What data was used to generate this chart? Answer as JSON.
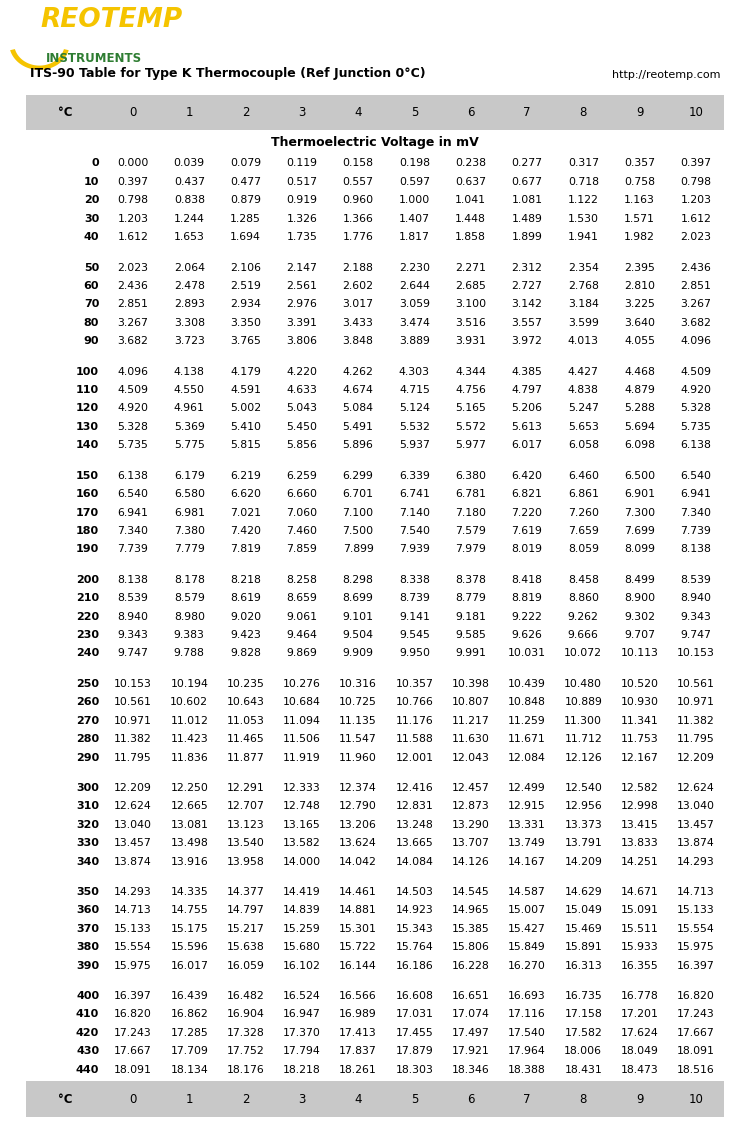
{
  "title_left": "ITS-90 Table for Type K Thermocouple (Ref Junction 0°C)",
  "title_right": "http://reotemp.com",
  "subtitle": "Thermoelectric Voltage in mV",
  "col_headers": [
    "°C",
    "0",
    "1",
    "2",
    "3",
    "4",
    "5",
    "6",
    "7",
    "8",
    "9",
    "10"
  ],
  "left_sidebar_color": "#3a7d44",
  "right_sidebar_color": "#f5c400",
  "header_bg": "#c8c8c8",
  "bg_color": "#ffffff",
  "text_color": "#000000",
  "header_text_color": "#000000",
  "bold_temp_color": "#000000",
  "logo_yellow": "#f5c400",
  "logo_green": "#2e7d32",
  "data": [
    [
      0,
      0.0,
      0.039,
      0.079,
      0.119,
      0.158,
      0.198,
      0.238,
      0.277,
      0.317,
      0.357,
      0.397
    ],
    [
      10,
      0.397,
      0.437,
      0.477,
      0.517,
      0.557,
      0.597,
      0.637,
      0.677,
      0.718,
      0.758,
      0.798
    ],
    [
      20,
      0.798,
      0.838,
      0.879,
      0.919,
      0.96,
      1.0,
      1.041,
      1.081,
      1.122,
      1.163,
      1.203
    ],
    [
      30,
      1.203,
      1.244,
      1.285,
      1.326,
      1.366,
      1.407,
      1.448,
      1.489,
      1.53,
      1.571,
      1.612
    ],
    [
      40,
      1.612,
      1.653,
      1.694,
      1.735,
      1.776,
      1.817,
      1.858,
      1.899,
      1.941,
      1.982,
      2.023
    ],
    [
      50,
      2.023,
      2.064,
      2.106,
      2.147,
      2.188,
      2.23,
      2.271,
      2.312,
      2.354,
      2.395,
      2.436
    ],
    [
      60,
      2.436,
      2.478,
      2.519,
      2.561,
      2.602,
      2.644,
      2.685,
      2.727,
      2.768,
      2.81,
      2.851
    ],
    [
      70,
      2.851,
      2.893,
      2.934,
      2.976,
      3.017,
      3.059,
      3.1,
      3.142,
      3.184,
      3.225,
      3.267
    ],
    [
      80,
      3.267,
      3.308,
      3.35,
      3.391,
      3.433,
      3.474,
      3.516,
      3.557,
      3.599,
      3.64,
      3.682
    ],
    [
      90,
      3.682,
      3.723,
      3.765,
      3.806,
      3.848,
      3.889,
      3.931,
      3.972,
      4.013,
      4.055,
      4.096
    ],
    [
      100,
      4.096,
      4.138,
      4.179,
      4.22,
      4.262,
      4.303,
      4.344,
      4.385,
      4.427,
      4.468,
      4.509
    ],
    [
      110,
      4.509,
      4.55,
      4.591,
      4.633,
      4.674,
      4.715,
      4.756,
      4.797,
      4.838,
      4.879,
      4.92
    ],
    [
      120,
      4.92,
      4.961,
      5.002,
      5.043,
      5.084,
      5.124,
      5.165,
      5.206,
      5.247,
      5.288,
      5.328
    ],
    [
      130,
      5.328,
      5.369,
      5.41,
      5.45,
      5.491,
      5.532,
      5.572,
      5.613,
      5.653,
      5.694,
      5.735
    ],
    [
      140,
      5.735,
      5.775,
      5.815,
      5.856,
      5.896,
      5.937,
      5.977,
      6.017,
      6.058,
      6.098,
      6.138
    ],
    [
      150,
      6.138,
      6.179,
      6.219,
      6.259,
      6.299,
      6.339,
      6.38,
      6.42,
      6.46,
      6.5,
      6.54
    ],
    [
      160,
      6.54,
      6.58,
      6.62,
      6.66,
      6.701,
      6.741,
      6.781,
      6.821,
      6.861,
      6.901,
      6.941
    ],
    [
      170,
      6.941,
      6.981,
      7.021,
      7.06,
      7.1,
      7.14,
      7.18,
      7.22,
      7.26,
      7.3,
      7.34
    ],
    [
      180,
      7.34,
      7.38,
      7.42,
      7.46,
      7.5,
      7.54,
      7.579,
      7.619,
      7.659,
      7.699,
      7.739
    ],
    [
      190,
      7.739,
      7.779,
      7.819,
      7.859,
      7.899,
      7.939,
      7.979,
      8.019,
      8.059,
      8.099,
      8.138
    ],
    [
      200,
      8.138,
      8.178,
      8.218,
      8.258,
      8.298,
      8.338,
      8.378,
      8.418,
      8.458,
      8.499,
      8.539
    ],
    [
      210,
      8.539,
      8.579,
      8.619,
      8.659,
      8.699,
      8.739,
      8.779,
      8.819,
      8.86,
      8.9,
      8.94
    ],
    [
      220,
      8.94,
      8.98,
      9.02,
      9.061,
      9.101,
      9.141,
      9.181,
      9.222,
      9.262,
      9.302,
      9.343
    ],
    [
      230,
      9.343,
      9.383,
      9.423,
      9.464,
      9.504,
      9.545,
      9.585,
      9.626,
      9.666,
      9.707,
      9.747
    ],
    [
      240,
      9.747,
      9.788,
      9.828,
      9.869,
      9.909,
      9.95,
      9.991,
      10.031,
      10.072,
      10.113,
      10.153
    ],
    [
      250,
      10.153,
      10.194,
      10.235,
      10.276,
      10.316,
      10.357,
      10.398,
      10.439,
      10.48,
      10.52,
      10.561
    ],
    [
      260,
      10.561,
      10.602,
      10.643,
      10.684,
      10.725,
      10.766,
      10.807,
      10.848,
      10.889,
      10.93,
      10.971
    ],
    [
      270,
      10.971,
      11.012,
      11.053,
      11.094,
      11.135,
      11.176,
      11.217,
      11.259,
      11.3,
      11.341,
      11.382
    ],
    [
      280,
      11.382,
      11.423,
      11.465,
      11.506,
      11.547,
      11.588,
      11.63,
      11.671,
      11.712,
      11.753,
      11.795
    ],
    [
      290,
      11.795,
      11.836,
      11.877,
      11.919,
      11.96,
      12.001,
      12.043,
      12.084,
      12.126,
      12.167,
      12.209
    ],
    [
      300,
      12.209,
      12.25,
      12.291,
      12.333,
      12.374,
      12.416,
      12.457,
      12.499,
      12.54,
      12.582,
      12.624
    ],
    [
      310,
      12.624,
      12.665,
      12.707,
      12.748,
      12.79,
      12.831,
      12.873,
      12.915,
      12.956,
      12.998,
      13.04
    ],
    [
      320,
      13.04,
      13.081,
      13.123,
      13.165,
      13.206,
      13.248,
      13.29,
      13.331,
      13.373,
      13.415,
      13.457
    ],
    [
      330,
      13.457,
      13.498,
      13.54,
      13.582,
      13.624,
      13.665,
      13.707,
      13.749,
      13.791,
      13.833,
      13.874
    ],
    [
      340,
      13.874,
      13.916,
      13.958,
      14.0,
      14.042,
      14.084,
      14.126,
      14.167,
      14.209,
      14.251,
      14.293
    ],
    [
      350,
      14.293,
      14.335,
      14.377,
      14.419,
      14.461,
      14.503,
      14.545,
      14.587,
      14.629,
      14.671,
      14.713
    ],
    [
      360,
      14.713,
      14.755,
      14.797,
      14.839,
      14.881,
      14.923,
      14.965,
      15.007,
      15.049,
      15.091,
      15.133
    ],
    [
      370,
      15.133,
      15.175,
      15.217,
      15.259,
      15.301,
      15.343,
      15.385,
      15.427,
      15.469,
      15.511,
      15.554
    ],
    [
      380,
      15.554,
      15.596,
      15.638,
      15.68,
      15.722,
      15.764,
      15.806,
      15.849,
      15.891,
      15.933,
      15.975
    ],
    [
      390,
      15.975,
      16.017,
      16.059,
      16.102,
      16.144,
      16.186,
      16.228,
      16.27,
      16.313,
      16.355,
      16.397
    ],
    [
      400,
      16.397,
      16.439,
      16.482,
      16.524,
      16.566,
      16.608,
      16.651,
      16.693,
      16.735,
      16.778,
      16.82
    ],
    [
      410,
      16.82,
      16.862,
      16.904,
      16.947,
      16.989,
      17.031,
      17.074,
      17.116,
      17.158,
      17.201,
      17.243
    ],
    [
      420,
      17.243,
      17.285,
      17.328,
      17.37,
      17.413,
      17.455,
      17.497,
      17.54,
      17.582,
      17.624,
      17.667
    ],
    [
      430,
      17.667,
      17.709,
      17.752,
      17.794,
      17.837,
      17.879,
      17.921,
      17.964,
      18.006,
      18.049,
      18.091
    ],
    [
      440,
      18.091,
      18.134,
      18.176,
      18.218,
      18.261,
      18.303,
      18.346,
      18.388,
      18.431,
      18.473,
      18.516
    ]
  ],
  "group_break_temps": [
    0,
    50,
    100,
    150,
    200,
    250,
    300,
    350,
    400
  ]
}
